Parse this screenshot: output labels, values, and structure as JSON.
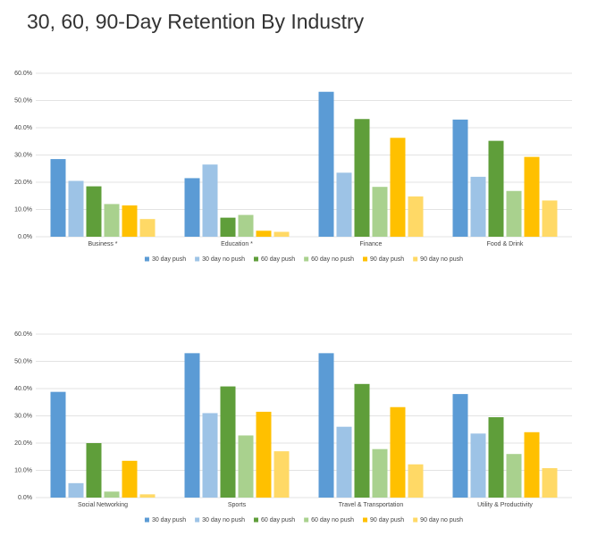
{
  "title": "30, 60, 90-Day Retention By Industry",
  "chart_data": [
    {
      "type": "bar",
      "categories": [
        "Business *",
        "Education *",
        "Finance",
        "Food & Drink"
      ],
      "series": [
        {
          "name": "30 day push",
          "color": "#5b9bd5",
          "values": [
            28.5,
            21.5,
            53.2,
            43
          ]
        },
        {
          "name": "30 day no push",
          "color": "#9dc3e6",
          "values": [
            20.5,
            26.5,
            23.5,
            22
          ]
        },
        {
          "name": "60 day push",
          "color": "#5f9e3a",
          "values": [
            18.5,
            7,
            43.2,
            35.2
          ]
        },
        {
          "name": "60 day no push",
          "color": "#a9d18e",
          "values": [
            12,
            8,
            18.3,
            16.8
          ]
        },
        {
          "name": "90 day push",
          "color": "#ffc000",
          "values": [
            11.5,
            2.2,
            36.3,
            29.3
          ]
        },
        {
          "name": "90 day no push",
          "color": "#ffd966",
          "values": [
            6.5,
            1.8,
            14.8,
            13.3
          ]
        }
      ],
      "ylim": [
        0,
        60
      ],
      "yticks": [
        {
          "value": 0,
          "label": "0.0%"
        },
        {
          "value": 10,
          "label": "10.0%"
        },
        {
          "value": 20,
          "label": "20.0%"
        },
        {
          "value": 30,
          "label": "30.0%"
        },
        {
          "value": 40,
          "label": "40.0%"
        },
        {
          "value": 50,
          "label": "50.0%"
        },
        {
          "value": 60,
          "label": "60.0%"
        }
      ],
      "grid": true,
      "legend": "bottom"
    },
    {
      "type": "bar",
      "categories": [
        "Social Networking",
        "Sports",
        "Travel & Transportation",
        "Utility & Productivity"
      ],
      "series": [
        {
          "name": "30 day push",
          "color": "#5b9bd5",
          "values": [
            38.8,
            53,
            53,
            38
          ]
        },
        {
          "name": "30 day no push",
          "color": "#9dc3e6",
          "values": [
            5.3,
            31,
            26,
            23.5
          ]
        },
        {
          "name": "60 day push",
          "color": "#5f9e3a",
          "values": [
            20,
            40.8,
            41.7,
            29.5
          ]
        },
        {
          "name": "60 day no push",
          "color": "#a9d18e",
          "values": [
            2.2,
            22.8,
            17.8,
            16
          ]
        },
        {
          "name": "90 day push",
          "color": "#ffc000",
          "values": [
            13.5,
            31.5,
            33.2,
            24
          ]
        },
        {
          "name": "90 day no push",
          "color": "#ffd966",
          "values": [
            1.2,
            17,
            12.2,
            10.8
          ]
        }
      ],
      "ylim": [
        0,
        60
      ],
      "yticks": [
        {
          "value": 0,
          "label": "0.0%"
        },
        {
          "value": 10,
          "label": "10.0%"
        },
        {
          "value": 20,
          "label": "20.0%"
        },
        {
          "value": 30,
          "label": "30.0%"
        },
        {
          "value": 40,
          "label": "40.0%"
        },
        {
          "value": 50,
          "label": "50.0%"
        },
        {
          "value": 60,
          "label": "60.0%"
        }
      ],
      "grid": true,
      "legend": "bottom"
    }
  ]
}
